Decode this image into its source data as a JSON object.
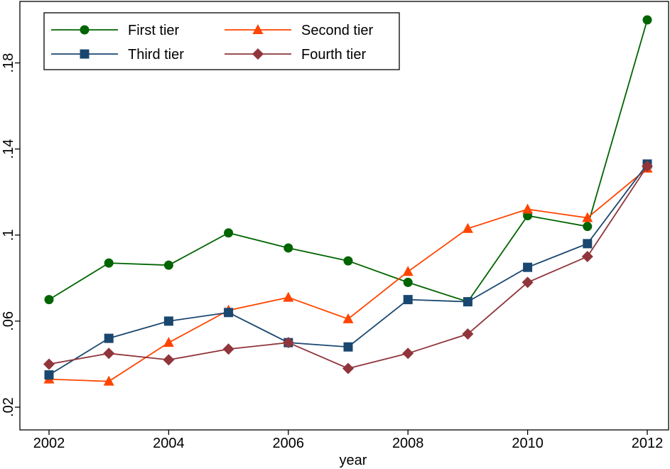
{
  "chart_data": {
    "type": "line",
    "title": "",
    "xlabel": "year",
    "ylabel": "",
    "x": [
      2002,
      2003,
      2004,
      2005,
      2006,
      2007,
      2008,
      2009,
      2010,
      2011,
      2012
    ],
    "xlim": [
      2002,
      2012
    ],
    "ylim": [
      0.02,
      0.2
    ],
    "xticks": [
      2002,
      2004,
      2006,
      2008,
      2010,
      2012
    ],
    "xtick_labels": [
      "2002",
      "2004",
      "2006",
      "2008",
      "2010",
      "2012"
    ],
    "yticks": [
      0.02,
      0.06,
      0.1,
      0.14,
      0.18
    ],
    "ytick_labels": [
      ".02",
      ".06",
      ".1",
      ".14",
      ".18"
    ],
    "grid": false,
    "legend_position": "top-left",
    "series": [
      {
        "name": "First tier",
        "color": "#006400",
        "marker": "circle",
        "values": [
          0.07,
          0.087,
          0.086,
          0.101,
          0.094,
          0.088,
          0.078,
          0.069,
          0.109,
          0.104,
          0.2
        ]
      },
      {
        "name": "Second tier",
        "color": "#ff4500",
        "marker": "triangle",
        "values": [
          0.033,
          0.032,
          0.05,
          0.065,
          0.071,
          0.061,
          0.083,
          0.103,
          0.112,
          0.108,
          0.131
        ]
      },
      {
        "name": "Third tier",
        "color": "#1a476f",
        "marker": "square",
        "values": [
          0.035,
          0.052,
          0.06,
          0.064,
          0.05,
          0.048,
          0.07,
          0.069,
          0.085,
          0.096,
          0.133
        ]
      },
      {
        "name": "Fourth tier",
        "color": "#90353b",
        "marker": "diamond",
        "values": [
          0.04,
          0.045,
          0.042,
          0.047,
          0.05,
          0.038,
          0.045,
          0.054,
          0.078,
          0.09,
          0.132
        ]
      }
    ]
  }
}
